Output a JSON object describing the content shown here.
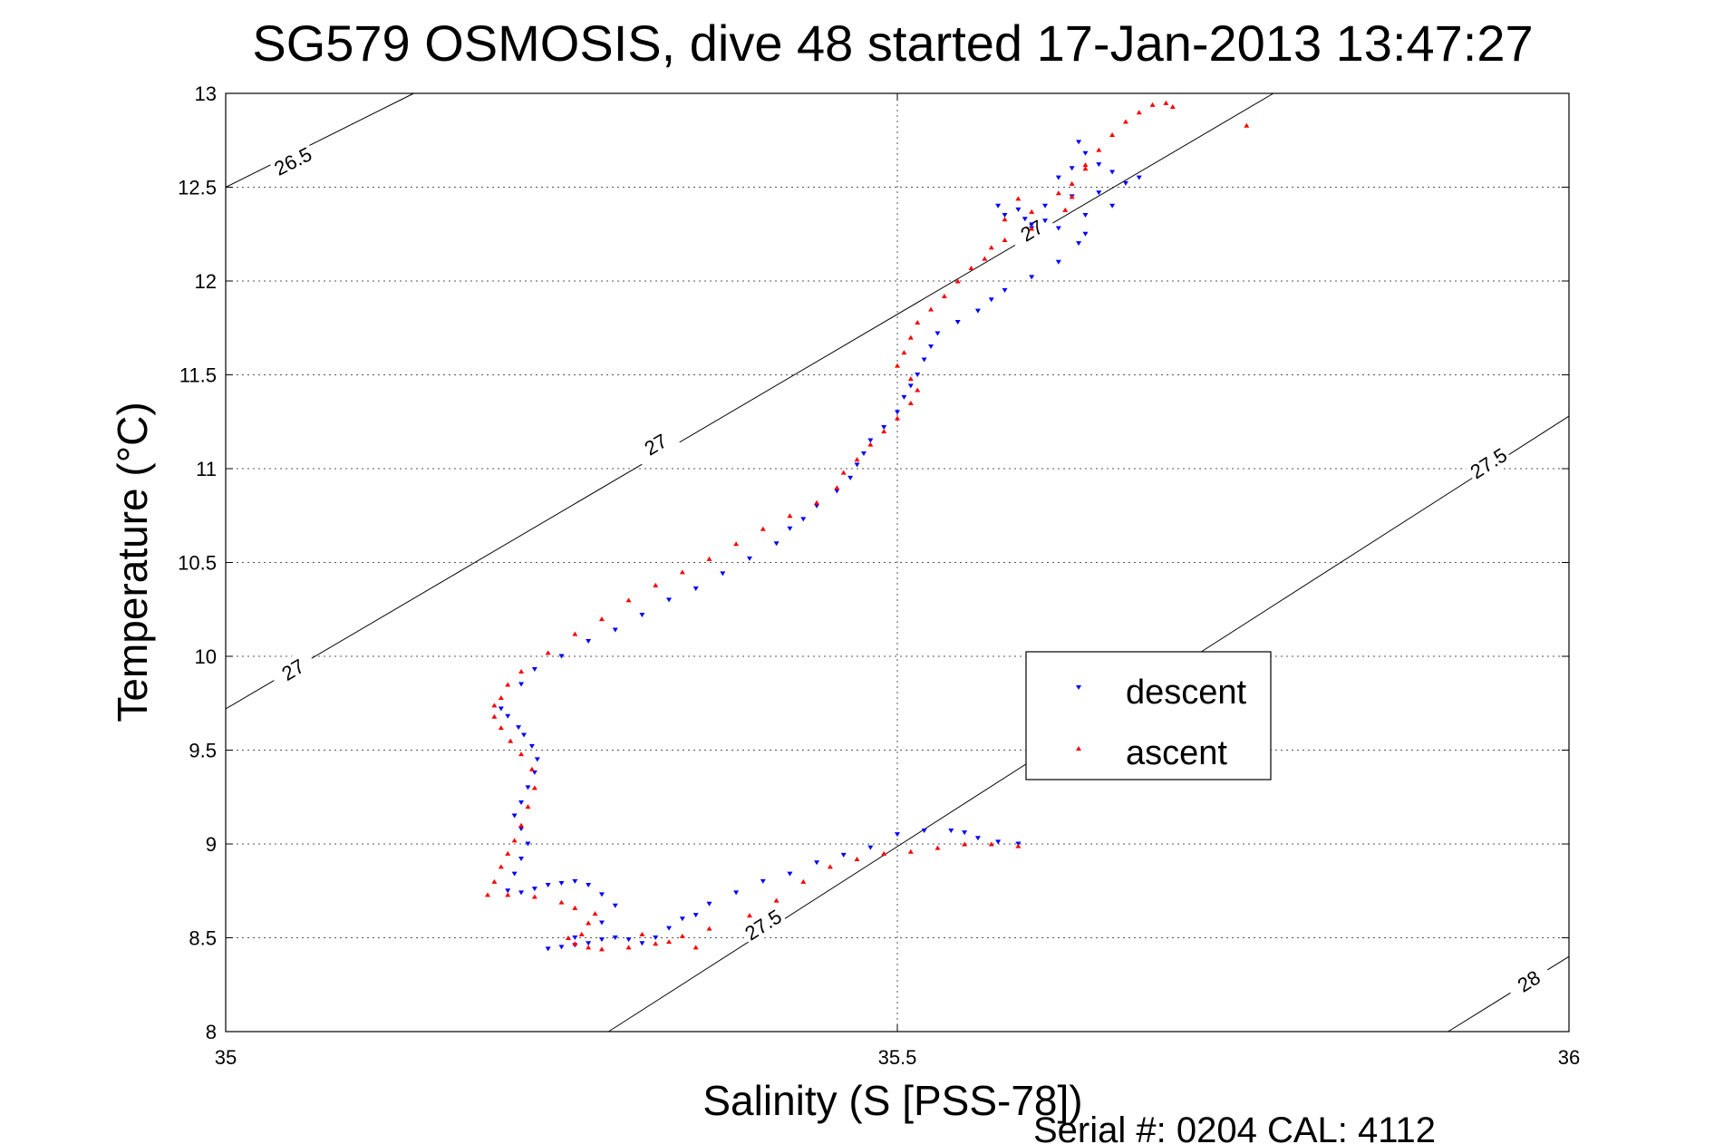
{
  "chart_data": {
    "type": "scatter",
    "title": "SG579 OSMOSIS, dive 48 started 17-Jan-2013 13:47:27",
    "xlabel": "Salinity (S [PSS-78])",
    "ylabel": "Temperature (°C)",
    "xlim": [
      35,
      36
    ],
    "ylim": [
      8,
      13
    ],
    "xticks": [
      "35",
      "35.5",
      "36"
    ],
    "yticks": [
      "8",
      "8.5",
      "9",
      "9.5",
      "10",
      "10.5",
      "11",
      "11.5",
      "12",
      "12.5",
      "13"
    ],
    "xtick_values": [
      35,
      35.5,
      36
    ],
    "ytick_values": [
      8,
      8.5,
      9,
      9.5,
      10,
      10.5,
      11,
      11.5,
      12,
      12.5,
      13
    ],
    "grid": true,
    "legend_position": "center-right",
    "footer": "Serial #: 0204  CAL: 4112",
    "contours": [
      {
        "label": "26.5",
        "points": [
          [
            35.0,
            12.5
          ],
          [
            35.14,
            13.0
          ]
        ],
        "label_positions": [
          [
            35.05,
            12.64
          ]
        ]
      },
      {
        "label": "27",
        "points": [
          [
            35.0,
            9.72
          ],
          [
            35.78,
            13.0
          ]
        ],
        "label_positions": [
          [
            35.05,
            9.93
          ],
          [
            35.32,
            11.13
          ],
          [
            35.6,
            12.27
          ]
        ]
      },
      {
        "label": "27.5",
        "points": [
          [
            35.285,
            8.0
          ],
          [
            36.0,
            11.28
          ]
        ],
        "label_positions": [
          [
            35.4,
            8.57
          ],
          [
            35.94,
            11.03
          ]
        ]
      },
      {
        "label": "28",
        "points": [
          [
            35.91,
            8.0
          ],
          [
            36.0,
            8.4
          ]
        ],
        "label_positions": [
          [
            35.97,
            8.27
          ]
        ]
      }
    ],
    "series": [
      {
        "name": "descent",
        "color": "#0000ff",
        "marker": "triangle-down",
        "points": [
          [
            35.59,
            9.0
          ],
          [
            35.575,
            9.01
          ],
          [
            35.56,
            9.03
          ],
          [
            35.55,
            9.06
          ],
          [
            35.54,
            9.07
          ],
          [
            35.52,
            9.07
          ],
          [
            35.5,
            9.05
          ],
          [
            35.48,
            8.98
          ],
          [
            35.46,
            8.94
          ],
          [
            35.44,
            8.9
          ],
          [
            35.42,
            8.84
          ],
          [
            35.4,
            8.8
          ],
          [
            35.38,
            8.74
          ],
          [
            35.36,
            8.68
          ],
          [
            35.35,
            8.62
          ],
          [
            35.34,
            8.6
          ],
          [
            35.33,
            8.55
          ],
          [
            35.32,
            8.5
          ],
          [
            35.31,
            8.47
          ],
          [
            35.3,
            8.49
          ],
          [
            35.29,
            8.5
          ],
          [
            35.28,
            8.49
          ],
          [
            35.27,
            8.47
          ],
          [
            35.26,
            8.46
          ],
          [
            35.25,
            8.45
          ],
          [
            35.24,
            8.44
          ],
          [
            35.26,
            8.5
          ],
          [
            35.28,
            8.58
          ],
          [
            35.29,
            8.67
          ],
          [
            35.28,
            8.73
          ],
          [
            35.27,
            8.78
          ],
          [
            35.26,
            8.8
          ],
          [
            35.25,
            8.79
          ],
          [
            35.24,
            8.78
          ],
          [
            35.23,
            8.76
          ],
          [
            35.22,
            8.74
          ],
          [
            35.21,
            8.75
          ],
          [
            35.215,
            8.84
          ],
          [
            35.22,
            8.92
          ],
          [
            35.225,
            9.0
          ],
          [
            35.22,
            9.08
          ],
          [
            35.215,
            9.15
          ],
          [
            35.22,
            9.22
          ],
          [
            35.225,
            9.3
          ],
          [
            35.23,
            9.38
          ],
          [
            35.232,
            9.45
          ],
          [
            35.228,
            9.52
          ],
          [
            35.222,
            9.58
          ],
          [
            35.218,
            9.62
          ],
          [
            35.21,
            9.68
          ],
          [
            35.205,
            9.72
          ],
          [
            35.22,
            9.85
          ],
          [
            35.23,
            9.93
          ],
          [
            35.25,
            10.0
          ],
          [
            35.27,
            10.08
          ],
          [
            35.29,
            10.14
          ],
          [
            35.31,
            10.22
          ],
          [
            35.33,
            10.3
          ],
          [
            35.35,
            10.36
          ],
          [
            35.37,
            10.44
          ],
          [
            35.39,
            10.52
          ],
          [
            35.41,
            10.6
          ],
          [
            35.42,
            10.68
          ],
          [
            35.43,
            10.73
          ],
          [
            35.44,
            10.8
          ],
          [
            35.455,
            10.88
          ],
          [
            35.465,
            10.95
          ],
          [
            35.47,
            11.02
          ],
          [
            35.475,
            11.08
          ],
          [
            35.48,
            11.15
          ],
          [
            35.49,
            11.22
          ],
          [
            35.5,
            11.3
          ],
          [
            35.505,
            11.38
          ],
          [
            35.51,
            11.44
          ],
          [
            35.515,
            11.5
          ],
          [
            35.52,
            11.58
          ],
          [
            35.525,
            11.65
          ],
          [
            35.53,
            11.72
          ],
          [
            35.545,
            11.78
          ],
          [
            35.56,
            11.84
          ],
          [
            35.57,
            11.9
          ],
          [
            35.58,
            11.95
          ],
          [
            35.6,
            12.02
          ],
          [
            35.62,
            12.1
          ],
          [
            35.635,
            12.2
          ],
          [
            35.64,
            12.25
          ],
          [
            35.62,
            12.28
          ],
          [
            35.6,
            12.3
          ],
          [
            35.58,
            12.35
          ],
          [
            35.59,
            12.38
          ],
          [
            35.61,
            12.4
          ],
          [
            35.63,
            12.45
          ],
          [
            35.65,
            12.47
          ],
          [
            35.67,
            12.52
          ],
          [
            35.68,
            12.55
          ],
          [
            35.66,
            12.58
          ],
          [
            35.65,
            12.62
          ],
          [
            35.64,
            12.68
          ],
          [
            35.635,
            12.74
          ],
          [
            35.63,
            12.6
          ],
          [
            35.62,
            12.55
          ],
          [
            35.64,
            12.35
          ],
          [
            35.66,
            12.4
          ],
          [
            35.61,
            12.32
          ],
          [
            35.6,
            12.28
          ],
          [
            35.595,
            12.33
          ],
          [
            35.575,
            12.4
          ]
        ]
      },
      {
        "name": "ascent",
        "color": "#ff0000",
        "marker": "triangle-up",
        "points": [
          [
            35.59,
            8.99
          ],
          [
            35.57,
            9.0
          ],
          [
            35.55,
            9.0
          ],
          [
            35.53,
            8.98
          ],
          [
            35.51,
            8.96
          ],
          [
            35.49,
            8.95
          ],
          [
            35.47,
            8.92
          ],
          [
            35.45,
            8.88
          ],
          [
            35.43,
            8.8
          ],
          [
            35.41,
            8.7
          ],
          [
            35.39,
            8.62
          ],
          [
            35.36,
            8.55
          ],
          [
            35.34,
            8.51
          ],
          [
            35.32,
            8.47
          ],
          [
            35.3,
            8.45
          ],
          [
            35.28,
            8.44
          ],
          [
            35.27,
            8.45
          ],
          [
            35.26,
            8.47
          ],
          [
            35.255,
            8.5
          ],
          [
            35.33,
            8.48
          ],
          [
            35.35,
            8.45
          ],
          [
            35.31,
            8.52
          ],
          [
            35.265,
            8.52
          ],
          [
            35.27,
            8.58
          ],
          [
            35.275,
            8.63
          ],
          [
            35.26,
            8.66
          ],
          [
            35.25,
            8.69
          ],
          [
            35.23,
            8.72
          ],
          [
            35.21,
            8.73
          ],
          [
            35.195,
            8.73
          ],
          [
            35.2,
            8.8
          ],
          [
            35.205,
            8.88
          ],
          [
            35.21,
            8.95
          ],
          [
            35.215,
            9.02
          ],
          [
            35.22,
            9.1
          ],
          [
            35.225,
            9.2
          ],
          [
            35.23,
            9.3
          ],
          [
            35.228,
            9.4
          ],
          [
            35.22,
            9.48
          ],
          [
            35.212,
            9.55
          ],
          [
            35.205,
            9.62
          ],
          [
            35.2,
            9.68
          ],
          [
            35.2,
            9.74
          ],
          [
            35.205,
            9.78
          ],
          [
            35.21,
            9.85
          ],
          [
            35.22,
            9.92
          ],
          [
            35.24,
            10.02
          ],
          [
            35.26,
            10.12
          ],
          [
            35.28,
            10.2
          ],
          [
            35.3,
            10.3
          ],
          [
            35.32,
            10.38
          ],
          [
            35.34,
            10.45
          ],
          [
            35.36,
            10.52
          ],
          [
            35.38,
            10.6
          ],
          [
            35.4,
            10.68
          ],
          [
            35.42,
            10.75
          ],
          [
            35.44,
            10.82
          ],
          [
            35.455,
            10.9
          ],
          [
            35.46,
            10.98
          ],
          [
            35.47,
            11.05
          ],
          [
            35.48,
            11.13
          ],
          [
            35.49,
            11.2
          ],
          [
            35.5,
            11.27
          ],
          [
            35.51,
            11.35
          ],
          [
            35.515,
            11.42
          ],
          [
            35.51,
            11.48
          ],
          [
            35.5,
            11.55
          ],
          [
            35.505,
            11.62
          ],
          [
            35.51,
            11.7
          ],
          [
            35.515,
            11.78
          ],
          [
            35.525,
            11.85
          ],
          [
            35.535,
            11.92
          ],
          [
            35.545,
            12.0
          ],
          [
            35.555,
            12.07
          ],
          [
            35.565,
            12.12
          ],
          [
            35.57,
            12.18
          ],
          [
            35.58,
            12.22
          ],
          [
            35.6,
            12.28
          ],
          [
            35.58,
            12.33
          ],
          [
            35.6,
            12.37
          ],
          [
            35.59,
            12.44
          ],
          [
            35.62,
            12.47
          ],
          [
            35.63,
            12.52
          ],
          [
            35.64,
            12.6
          ],
          [
            35.65,
            12.7
          ],
          [
            35.66,
            12.78
          ],
          [
            35.67,
            12.85
          ],
          [
            35.68,
            12.9
          ],
          [
            35.69,
            12.94
          ],
          [
            35.7,
            12.95
          ],
          [
            35.705,
            12.93
          ],
          [
            35.76,
            12.83
          ],
          [
            35.64,
            12.62
          ],
          [
            35.63,
            12.45
          ],
          [
            35.625,
            12.38
          ]
        ]
      }
    ]
  }
}
